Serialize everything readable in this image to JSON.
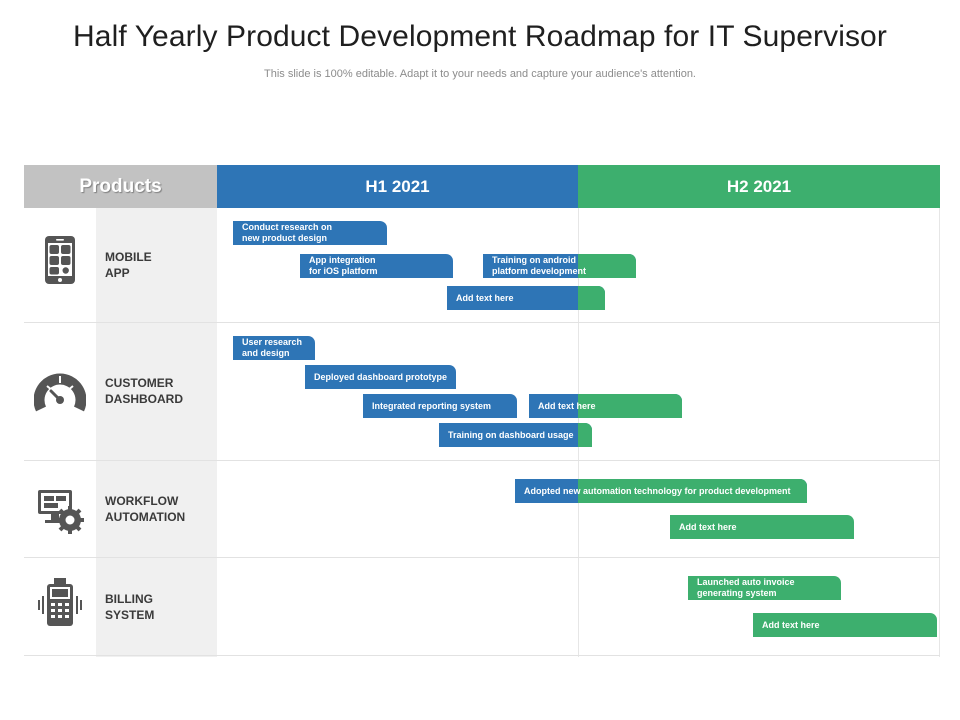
{
  "title": "Half Yearly Product Development Roadmap for IT Supervisor",
  "subtitle": "This slide is 100% editable. Adapt it to your needs and capture your audience's attention.",
  "headers": {
    "products": "Products",
    "h1": "H1 2021",
    "h2": "H2 2021"
  },
  "colors": {
    "blue": "#2e75b6",
    "green": "#3daf6e",
    "header_gray": "#c2c2c2",
    "icon": "#555555"
  },
  "products": [
    {
      "name": "MOBILE\nAPP",
      "icon": "mobile-app-icon",
      "tasks": [
        {
          "label": "Conduct research on\nnew product design",
          "color": "blue"
        },
        {
          "label": "App integration\nfor iOS platform",
          "color": "blue"
        },
        {
          "label": "Training on android\nplatform development",
          "color": "blue-green"
        },
        {
          "label": "Add text here",
          "color": "blue-green"
        }
      ]
    },
    {
      "name": "CUSTOMER\nDASHBOARD",
      "icon": "dashboard-gauge-icon",
      "tasks": [
        {
          "label": "User research\nand design",
          "color": "blue"
        },
        {
          "label": "Deployed dashboard prototype",
          "color": "blue"
        },
        {
          "label": "Integrated reporting system",
          "color": "blue"
        },
        {
          "label": "Add text here",
          "color": "blue-green"
        },
        {
          "label": "Training on dashboard usage",
          "color": "blue-green"
        }
      ]
    },
    {
      "name": "WORKFLOW\nAUTOMATION",
      "icon": "workflow-gear-icon",
      "tasks": [
        {
          "label": "Adopted new automation technology for product development",
          "color": "blue-green"
        },
        {
          "label": "Add text here",
          "color": "green"
        }
      ]
    },
    {
      "name": "BILLING\nSYSTEM",
      "icon": "billing-terminal-icon",
      "tasks": [
        {
          "label": "Launched auto invoice\ngenerating system",
          "color": "green"
        },
        {
          "label": "Add text here",
          "color": "green"
        }
      ]
    }
  ]
}
